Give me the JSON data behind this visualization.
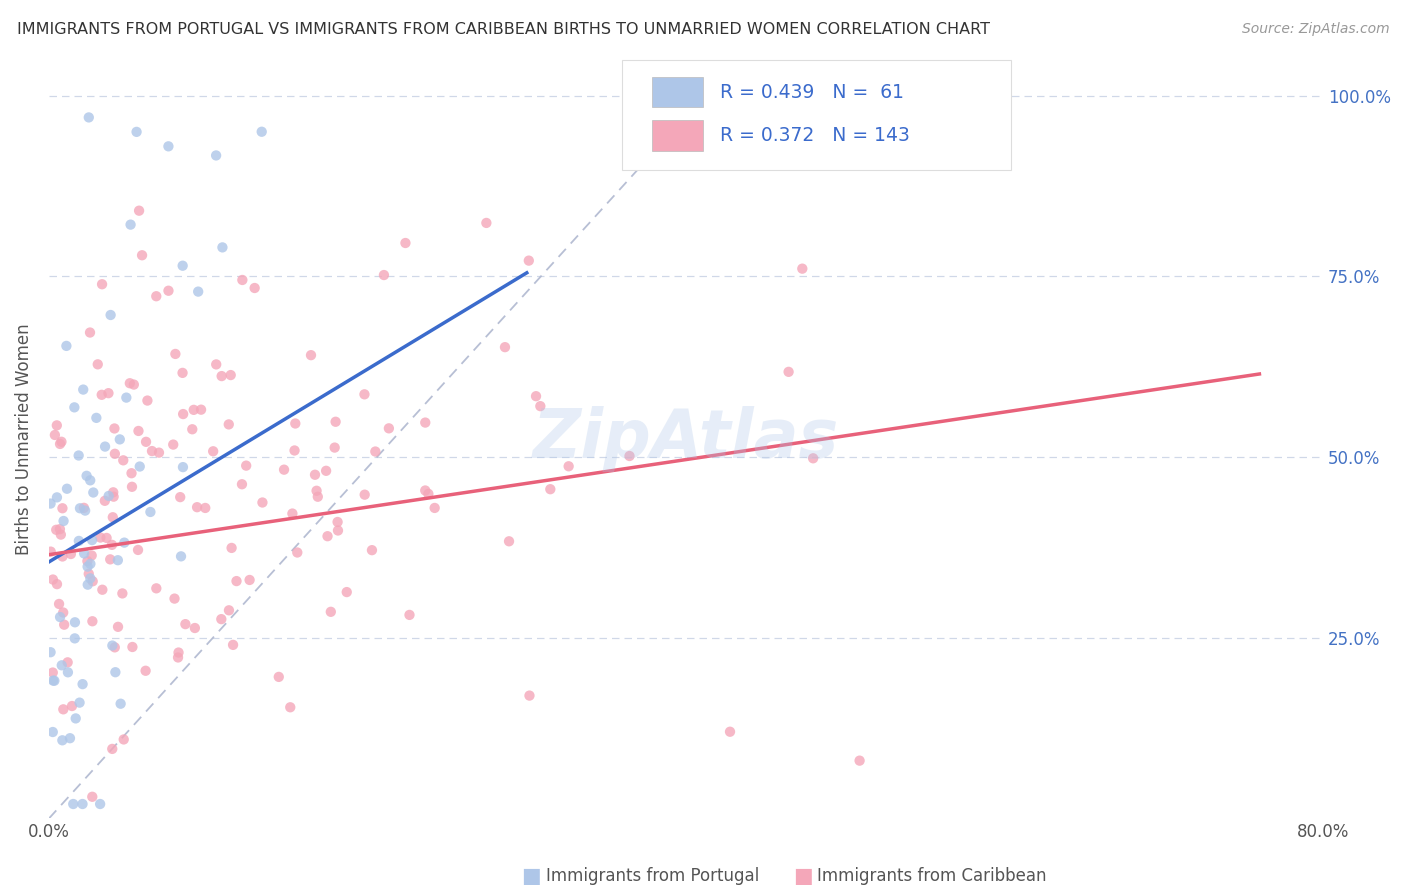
{
  "title": "IMMIGRANTS FROM PORTUGAL VS IMMIGRANTS FROM CARIBBEAN BIRTHS TO UNMARRIED WOMEN CORRELATION CHART",
  "source": "Source: ZipAtlas.com",
  "ylabel": "Births to Unmarried Women",
  "xlim": [
    0.0,
    0.8
  ],
  "ylim": [
    0.0,
    1.05
  ],
  "xtick_labels": [
    "0.0%",
    "80.0%"
  ],
  "ytick_labels_right": [
    "25.0%",
    "50.0%",
    "75.0%",
    "100.0%"
  ],
  "ytick_vals_right": [
    0.25,
    0.5,
    0.75,
    1.0
  ],
  "legend_label1": "Immigrants from Portugal",
  "legend_label2": "Immigrants from Caribbean",
  "R1": 0.439,
  "N1": 61,
  "R2": 0.372,
  "N2": 143,
  "color_portugal": "#aec6e8",
  "color_caribbean": "#f4a7b9",
  "trend_color_portugal": "#3b6bcc",
  "trend_color_caribbean": "#e8617a",
  "ref_line_color": "#b0b8d0",
  "grid_color": "#d0d8e8",
  "background_color": "#ffffff",
  "watermark_color": "#aec6e8",
  "legend_edge_color": "#dddddd",
  "right_tick_color": "#4472c4",
  "portugal_trend_start_x": 0.0,
  "portugal_trend_end_x": 0.3,
  "portugal_trend_start_y": 0.355,
  "portugal_trend_end_y": 0.755,
  "caribbean_trend_start_x": 0.0,
  "caribbean_trend_end_x": 0.76,
  "caribbean_trend_start_y": 0.365,
  "caribbean_trend_end_y": 0.615
}
